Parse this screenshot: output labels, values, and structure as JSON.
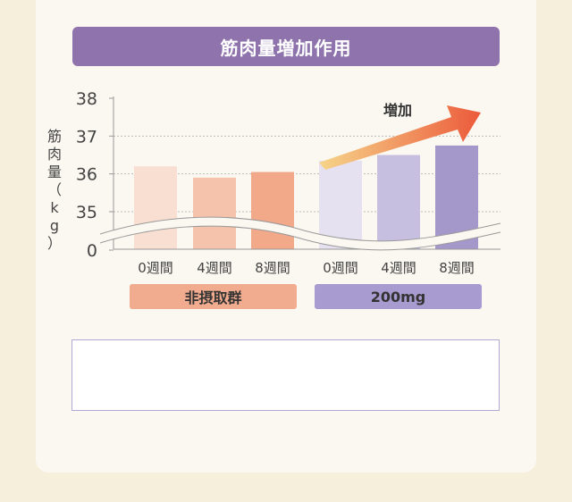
{
  "chart_data": {
    "type": "bar",
    "title": "筋肉量増加作用",
    "ylabel": "筋肉量（kg）",
    "yticks": [
      "38",
      "37",
      "36",
      "35",
      "0"
    ],
    "ylim": [
      35,
      38
    ],
    "axis_break": true,
    "grid": true,
    "groups": [
      {
        "name": "非摂取群",
        "categories": [
          "0週間",
          "4週間",
          "8週間"
        ],
        "values": [
          36.2,
          35.9,
          36.05
        ],
        "colors": [
          "#f9dfd2",
          "#f5c3ab",
          "#f2a98a"
        ]
      },
      {
        "name": "200mg",
        "categories": [
          "0週間",
          "4週間",
          "8週間"
        ],
        "values": [
          36.35,
          36.5,
          36.75
        ],
        "colors": [
          "#e6e1f0",
          "#c7bfe0",
          "#a498cb"
        ]
      }
    ],
    "annotation": "増加"
  }
}
